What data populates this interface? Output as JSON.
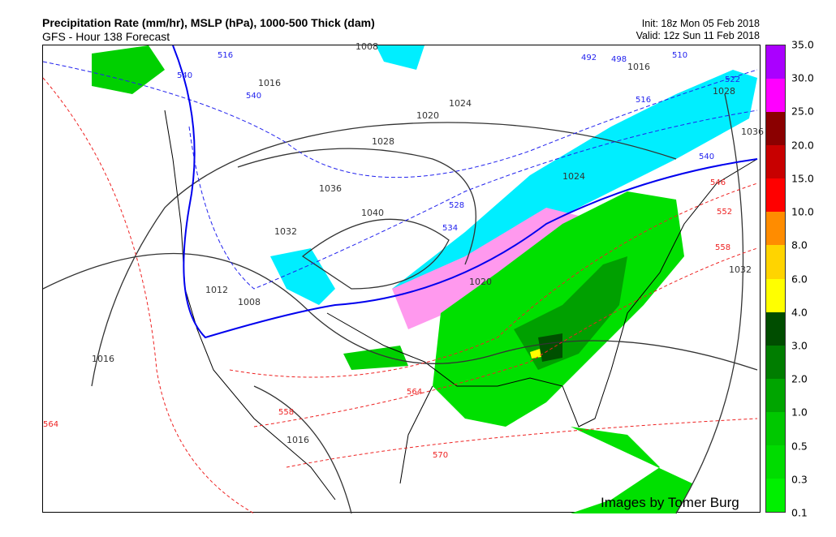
{
  "header": {
    "title": "Precipitation Rate (mm/hr),  MSLP (hPa),  1000-500 Thick (dam)",
    "subtitle": "GFS - Hour 138 Forecast",
    "init": "Init: 18z Mon 05 Feb 2018",
    "valid": "Valid: 12z Sun 11 Feb 2018"
  },
  "colorbar": {
    "ticks": [
      "0.1",
      "0.3",
      "0.5",
      "1.0",
      "2.0",
      "3.0",
      "4.0",
      "6.0",
      "8.0",
      "10.0",
      "15.0",
      "20.0",
      "25.0",
      "30.0",
      "35.0"
    ],
    "colors": [
      "#00f000",
      "#00dc00",
      "#00c800",
      "#00a500",
      "#007d00",
      "#004d00",
      "#ffff00",
      "#ffd400",
      "#ff8c00",
      "#ff0000",
      "#c80000",
      "#8b0000",
      "#ff00ff",
      "#aa00ff"
    ]
  },
  "map": {
    "isobar_labels": [
      "1008",
      "1016",
      "1020",
      "1024",
      "1028",
      "1028",
      "1036",
      "1040",
      "1032",
      "1012",
      "1008",
      "1016",
      "1016",
      "1020",
      "1024",
      "1032",
      "1036",
      "1016"
    ],
    "thickness_labels_blue": [
      "540",
      "540",
      "540",
      "492",
      "498",
      "510",
      "516",
      "522",
      "528",
      "534",
      "516"
    ],
    "thickness_labels_red": [
      "546",
      "552",
      "558",
      "564",
      "570",
      "558",
      "564"
    ]
  },
  "credit": "Images by Tomer Burg"
}
